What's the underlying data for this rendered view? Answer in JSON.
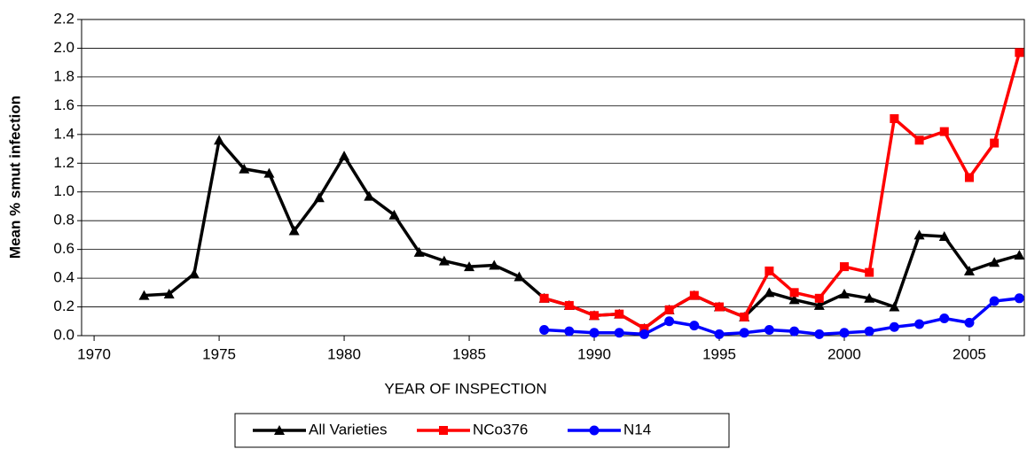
{
  "chart_data": {
    "type": "line",
    "xlabel": "YEAR OF INSPECTION",
    "ylabel": "Mean % smut infection",
    "x": [
      1972,
      1973,
      1974,
      1975,
      1976,
      1977,
      1978,
      1979,
      1980,
      1981,
      1982,
      1983,
      1984,
      1985,
      1986,
      1987,
      1988,
      1989,
      1990,
      1991,
      1992,
      1993,
      1994,
      1995,
      1996,
      1997,
      1998,
      1999,
      2000,
      2001,
      2002,
      2003,
      2004,
      2005,
      2006,
      2007
    ],
    "series": [
      {
        "name": "All Varieties",
        "color": "#000000",
        "marker": "triangle",
        "values": [
          0.28,
          0.29,
          0.43,
          1.36,
          1.16,
          1.13,
          0.73,
          0.96,
          1.25,
          0.97,
          0.84,
          0.58,
          0.52,
          0.48,
          0.49,
          0.41,
          0.26,
          0.21,
          0.14,
          0.15,
          0.05,
          0.18,
          0.28,
          0.2,
          0.13,
          0.3,
          0.25,
          0.21,
          0.29,
          0.26,
          0.2,
          0.7,
          0.69,
          0.45,
          0.51,
          0.56
        ]
      },
      {
        "name": "NCo376",
        "color": "#ff0000",
        "marker": "square",
        "values": [
          null,
          null,
          null,
          null,
          null,
          null,
          null,
          null,
          null,
          null,
          null,
          null,
          null,
          null,
          null,
          null,
          0.26,
          0.21,
          0.14,
          0.15,
          0.05,
          0.18,
          0.28,
          0.2,
          0.13,
          0.45,
          0.3,
          0.26,
          0.48,
          0.44,
          1.51,
          1.36,
          1.42,
          1.1,
          1.34,
          1.97
        ]
      },
      {
        "name": "N14",
        "color": "#0000ff",
        "marker": "circle",
        "values": [
          null,
          null,
          null,
          null,
          null,
          null,
          null,
          null,
          null,
          null,
          null,
          null,
          null,
          null,
          null,
          null,
          0.04,
          0.03,
          0.02,
          0.02,
          0.01,
          0.1,
          0.07,
          0.01,
          0.02,
          0.04,
          0.03,
          0.01,
          0.02,
          0.03,
          0.06,
          0.08,
          0.12,
          0.09,
          0.24,
          0.26
        ]
      }
    ],
    "xlim": [
      1969.5,
      2007.2
    ],
    "xticks": [
      1970,
      1975,
      1980,
      1985,
      1990,
      1995,
      2000,
      2005
    ],
    "ylim": [
      0,
      2.2
    ],
    "yticks": [
      {
        "value": 0,
        "label": "0.0"
      },
      {
        "value": 0.2,
        "label": "0.2"
      },
      {
        "value": 0.4,
        "label": "0.4"
      },
      {
        "value": 0.6,
        "label": "0.6"
      },
      {
        "value": 0.8,
        "label": "0.8"
      },
      {
        "value": 1.0,
        "label": "1.0"
      },
      {
        "value": 1.2,
        "label": "1.2"
      },
      {
        "value": 1.4,
        "label": "1.4"
      },
      {
        "value": 1.6,
        "label": "1.6"
      },
      {
        "value": 1.8,
        "label": "1.8"
      },
      {
        "value": 2.0,
        "label": "2.0"
      },
      {
        "value": 2.2,
        "label": "2.2"
      }
    ],
    "grid": true,
    "legend": "bottom"
  }
}
